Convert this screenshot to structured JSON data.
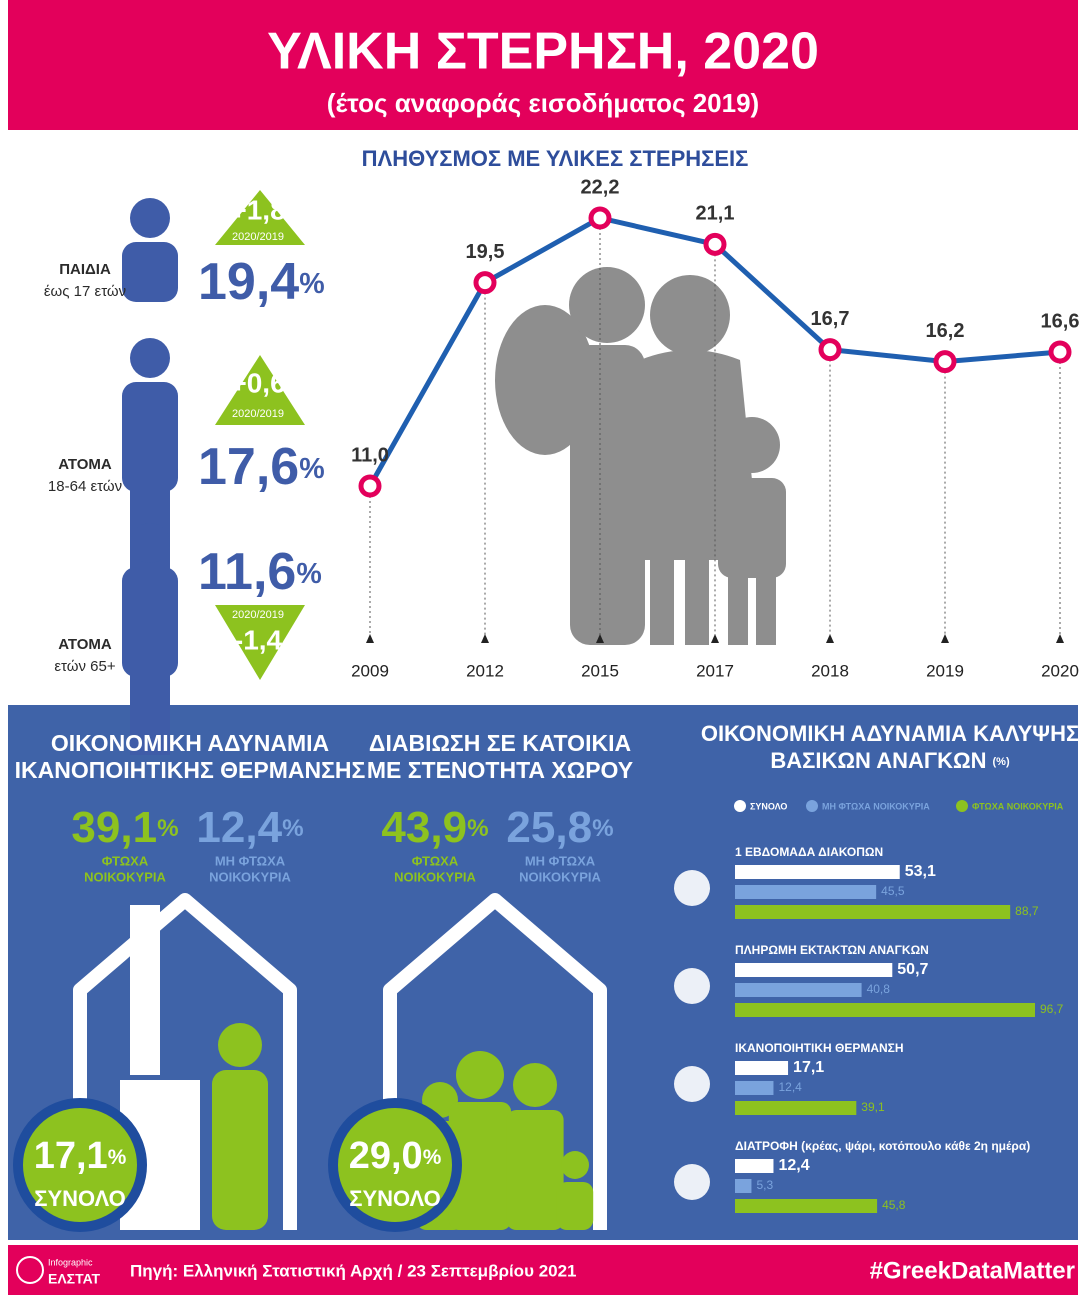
{
  "header": {
    "title": "ΥΛΙΚΗ ΣΤΕΡΗΣΗ, 2020",
    "subtitle": "(έτος αναφοράς εισοδήματος 2019)"
  },
  "groups": [
    {
      "label": "ΠΑΙΔΙΑ",
      "sublabel": "έως 17 ετών",
      "change": "+1,8",
      "period": "2020/2019",
      "value": "19,4",
      "unit": "%"
    },
    {
      "label": "ΑΤΟΜΑ",
      "sublabel": "18-64 ετών",
      "change": "+0,6",
      "period": "2020/2019",
      "value": "17,6",
      "unit": "%"
    },
    {
      "label": "ΑΤΟΜΑ",
      "sublabel": "ετών 65+",
      "change": "-1,4",
      "period": "2020/2019",
      "value": "11,6",
      "unit": "%"
    }
  ],
  "chart_data": [
    {
      "type": "line",
      "title": "ΠΛΗΘΥΣΜΟΣ ΜΕ ΥΛΙΚΕΣ ΣΤΕΡΗΣΕΙΣ",
      "categories": [
        "2009",
        "2012",
        "2015",
        "2017",
        "2018",
        "2019",
        "2020"
      ],
      "values": [
        11.0,
        19.5,
        22.2,
        21.1,
        16.7,
        16.2,
        16.6
      ],
      "value_labels": [
        "11,0",
        "19,5",
        "22,2",
        "21,1",
        "16,7",
        "16,2",
        "16,6"
      ],
      "color": "#1f5fb0",
      "marker_color": "#e3005b"
    },
    {
      "type": "bar",
      "orientation": "horizontal",
      "title_lines": [
        "ΟΙΚΟΝΟΜΙΚΗ ΑΔΥΝΑΜΙΑ ΚΑΛΥΨΗΣ",
        "ΒΑΣΙΚΩΝ ΑΝΑΓΚΩΝ"
      ],
      "unit_label": "(%)",
      "categories": [
        "1 ΕΒΔΟΜΑΔΑ ΔΙΑΚΟΠΩΝ",
        "ΠΛΗΡΩΜΗ ΕΚΤΑΚΤΩΝ ΑΝΑΓΚΩΝ",
        "ΙΚΑΝΟΠΟΙΗΤΙΚΗ ΘΕΡΜΑΝΣΗ",
        "ΔΙΑΤΡΟΦΗ  (κρέας, ψάρι, κοτόπουλο κάθε 2η ημέρα)"
      ],
      "series": [
        {
          "name": "ΣΥΝΟΛΟ",
          "color": "#ffffff",
          "values": [
            53.1,
            50.7,
            17.1,
            12.4
          ],
          "value_labels": [
            "53,1",
            "50,7",
            "17,1",
            "12,4"
          ]
        },
        {
          "name": "ΜΗ ΦΤΩΧΑ ΝΟΙΚΟΚΥΡΙΑ",
          "color": "#7aa3dd",
          "values": [
            45.5,
            40.8,
            12.4,
            5.3
          ],
          "value_labels": [
            "45,5",
            "40,8",
            "12,4",
            "5,3"
          ]
        },
        {
          "name": "ΦΤΩΧΑ ΝΟΙΚΟΚΥΡΙΑ",
          "color": "#8dc21f",
          "values": [
            88.7,
            96.7,
            39.1,
            45.8
          ],
          "value_labels": [
            "88,7",
            "96,7",
            "39,1",
            "45,8"
          ]
        }
      ]
    }
  ],
  "panels": [
    {
      "title_lines": [
        "ΟΙΚΟΝΟΜΙΚΗ ΑΔΥΝΑΜΙΑ",
        "ΙΚΑΝΟΠΟΙΗΤΙΚΗΣ ΘΕΡΜΑΝΣΗΣ"
      ],
      "poor": {
        "value": "39,1",
        "unit": "%",
        "label_lines": [
          "ΦΤΩΧΑ",
          "ΝΟΙΚΟΚΥΡΙΑ"
        ]
      },
      "nonpoor": {
        "value": "12,4",
        "unit": "%",
        "label_lines": [
          "ΜΗ ΦΤΩΧΑ",
          "ΝΟΙΚΟΚΥΡΙΑ"
        ]
      },
      "total": {
        "value": "17,1",
        "unit": "%",
        "label": "ΣΥΝΟΛΟ"
      }
    },
    {
      "title_lines": [
        "ΔΙΑΒΙΩΣΗ ΣΕ ΚΑΤΟΙΚΙΑ",
        "ΜΕ ΣΤΕΝΟΤΗΤΑ ΧΩΡΟΥ"
      ],
      "poor": {
        "value": "43,9",
        "unit": "%",
        "label_lines": [
          "ΦΤΩΧΑ",
          "ΝΟΙΚΟΚΥΡΙΑ"
        ]
      },
      "nonpoor": {
        "value": "25,8",
        "unit": "%",
        "label_lines": [
          "ΜΗ ΦΤΩΧΑ",
          "ΝΟΙΚΟΚΥΡΙΑ"
        ]
      },
      "total": {
        "value": "29,0",
        "unit": "%",
        "label": "ΣΥΝΟΛΟ"
      }
    }
  ],
  "footer": {
    "logo_top": "Infographic",
    "logo_bottom": "ΕΛΣΤΑΤ",
    "source": "Πηγή: Ελληνική Στατιστική Αρχή  / 23 Σεπτεμβρίου 2021",
    "hashtag": "#GreekDataMatter"
  }
}
